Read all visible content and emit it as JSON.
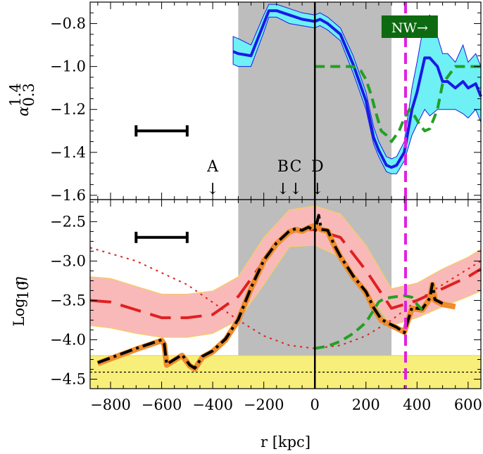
{
  "chart_data": [
    {
      "panel": "top",
      "type": "line",
      "xlabel": "",
      "ylabel": "α",
      "ylabel_sup": "1.4",
      "ylabel_sub": "0.3",
      "xlim": [
        -880,
        650
      ],
      "ylim": [
        -1.62,
        -0.7
      ],
      "yticks": [
        -0.8,
        -1.0,
        -1.2,
        -1.4,
        -1.6
      ],
      "ytick_labels": [
        "−0.8",
        "−1.0",
        "−1.2",
        "−1.4",
        "−1.6"
      ],
      "shaded_region_x": [
        -300,
        300
      ],
      "vline_solid_x": 0,
      "vline_dashed_x": 355,
      "scale_bar": {
        "x": [
          -700,
          -500
        ],
        "y": -1.3
      },
      "annotation": "NW→",
      "markers": [
        {
          "label": "A",
          "x": -400
        },
        {
          "label": "B",
          "x": -125
        },
        {
          "label": "C",
          "x": -75
        },
        {
          "label": "D",
          "x": 10
        }
      ],
      "series": [
        {
          "color": "#1a1ae6",
          "style": "solid",
          "band_color": "#6ef0f5",
          "x": [
            -320,
            -300,
            -250,
            -200,
            -180,
            -150,
            -100,
            -50,
            0,
            20,
            50,
            100,
            150,
            200,
            230,
            250,
            280,
            300,
            320,
            350,
            380,
            400,
            430,
            450,
            480,
            500,
            520,
            550,
            580,
            600,
            630,
            650
          ],
          "y": [
            -0.93,
            -0.94,
            -0.95,
            -0.8,
            -0.74,
            -0.74,
            -0.76,
            -0.78,
            -0.79,
            -0.78,
            -0.8,
            -0.85,
            -0.99,
            -1.16,
            -1.33,
            -1.39,
            -1.46,
            -1.47,
            -1.46,
            -1.4,
            -1.2,
            -1.12,
            -0.96,
            -0.96,
            -1.0,
            -1.07,
            -1.07,
            -1.1,
            -1.07,
            -1.1,
            -1.08,
            -1.14
          ],
          "y_lower": [
            -0.99,
            -1.0,
            -1.0,
            -0.84,
            -0.77,
            -0.77,
            -0.8,
            -0.81,
            -0.82,
            -0.81,
            -0.83,
            -0.88,
            -1.03,
            -1.2,
            -1.36,
            -1.42,
            -1.49,
            -1.5,
            -1.5,
            -1.44,
            -1.32,
            -1.27,
            -1.2,
            -1.23,
            -1.2,
            -1.2,
            -1.2,
            -1.2,
            -1.22,
            -1.24,
            -1.2,
            -1.26
          ],
          "y_upper": [
            -0.86,
            -0.87,
            -0.9,
            -0.76,
            -0.71,
            -0.71,
            -0.73,
            -0.75,
            -0.76,
            -0.75,
            -0.77,
            -0.82,
            -0.95,
            -1.12,
            -1.28,
            -1.35,
            -1.42,
            -1.43,
            -1.42,
            -1.35,
            -1.1,
            -0.98,
            -0.78,
            -0.76,
            -0.86,
            -0.94,
            -0.94,
            -0.98,
            -0.9,
            -0.98,
            -0.94,
            -1.0
          ]
        },
        {
          "color": "#22a022",
          "style": "dashed",
          "x": [
            0,
            100,
            150,
            180,
            200,
            220,
            240,
            260,
            280,
            300,
            330,
            350,
            370,
            390,
            410,
            430,
            450,
            480,
            500,
            550,
            600,
            650
          ],
          "y": [
            -1.0,
            -1.0,
            -1.0,
            -1.02,
            -1.06,
            -1.13,
            -1.22,
            -1.3,
            -1.32,
            -1.35,
            -1.3,
            -1.24,
            -1.2,
            -1.23,
            -1.27,
            -1.3,
            -1.29,
            -1.2,
            -1.08,
            -1.0,
            -1.0,
            -1.0
          ]
        }
      ]
    },
    {
      "panel": "bottom",
      "type": "line",
      "xlabel": "r [kpc]",
      "ylabel": "Log",
      "ylabel_sub": "10",
      "ylabel_var": "η",
      "xlim": [
        -880,
        650
      ],
      "ylim": [
        -4.62,
        -2.22
      ],
      "xticks": [
        -800,
        -600,
        -400,
        -200,
        0,
        200,
        400,
        600
      ],
      "xtick_labels": [
        "−800",
        "−600",
        "−400",
        "−200",
        "0",
        "200",
        "400",
        "600"
      ],
      "yticks": [
        -2.5,
        -3.0,
        -3.5,
        -4.0,
        -4.5
      ],
      "ytick_labels": [
        "−2.5",
        "−3.0",
        "−3.5",
        "−4.0",
        "−4.5"
      ],
      "yellow_band_y": [
        -4.62,
        -4.2
      ],
      "hline_dotted_y": -4.41,
      "shaded_region_x": [
        -300,
        300
      ],
      "vline_solid_x": 0,
      "vline_dashed_x": 355,
      "scale_bar": {
        "x": [
          -700,
          -500
        ],
        "y": -2.7
      },
      "series": [
        {
          "color": "#e02020",
          "style": "longdash",
          "band_color": "#f9b9b9",
          "x": [
            -880,
            -800,
            -700,
            -600,
            -500,
            -400,
            -300,
            -200,
            -100,
            0,
            100,
            200,
            300,
            400,
            500,
            600,
            650
          ],
          "y": [
            -3.5,
            -3.52,
            -3.62,
            -3.72,
            -3.72,
            -3.68,
            -3.45,
            -3.0,
            -2.6,
            -2.6,
            -2.7,
            -3.12,
            -3.6,
            -3.5,
            -3.35,
            -3.2,
            -3.1
          ],
          "y_lower": [
            -3.82,
            -3.85,
            -3.92,
            -3.97,
            -3.97,
            -3.92,
            -3.75,
            -3.3,
            -2.82,
            -2.8,
            -2.95,
            -3.38,
            -3.82,
            -3.72,
            -3.58,
            -3.45,
            -3.38
          ],
          "y_upper": [
            -3.2,
            -3.22,
            -3.32,
            -3.42,
            -3.42,
            -3.38,
            -3.2,
            -2.7,
            -2.35,
            -2.3,
            -2.4,
            -2.8,
            -3.35,
            -3.28,
            -3.1,
            -2.95,
            -2.85
          ]
        },
        {
          "color": "#e02020",
          "style": "dotted",
          "x": [
            -880,
            -700,
            -500,
            -300,
            -200,
            -100,
            0,
            100,
            200,
            300,
            400,
            500,
            600,
            650
          ],
          "y": [
            -2.83,
            -3.0,
            -3.3,
            -3.75,
            -3.95,
            -4.07,
            -4.11,
            -4.07,
            -3.95,
            -3.75,
            -3.5,
            -3.3,
            -3.1,
            -3.0
          ]
        },
        {
          "color": "#f08c2a",
          "style": "solid-thick",
          "x": [
            -850,
            -700,
            -600,
            -590,
            -580,
            -520,
            -490,
            -470,
            -440,
            -400,
            -350,
            -300,
            -250,
            -200,
            -150,
            -100,
            -75,
            -50,
            -25,
            0,
            25,
            50,
            75,
            100,
            150,
            200,
            230,
            260,
            300,
            320,
            350,
            380,
            420,
            450,
            460,
            470,
            500,
            550
          ],
          "y": [
            -4.3,
            -4.12,
            -4.01,
            -4.06,
            -4.32,
            -4.2,
            -4.33,
            -4.37,
            -4.22,
            -4.15,
            -4.0,
            -3.75,
            -3.35,
            -3.0,
            -2.78,
            -2.63,
            -2.6,
            -2.62,
            -2.58,
            -2.55,
            -2.6,
            -2.62,
            -2.8,
            -2.95,
            -3.2,
            -3.4,
            -3.6,
            -3.75,
            -3.82,
            -3.85,
            -3.9,
            -3.6,
            -3.62,
            -3.48,
            -3.3,
            -3.5,
            -3.55,
            -3.58
          ]
        },
        {
          "color": "#000000",
          "style": "dashdot",
          "x": [
            -850,
            -700,
            -600,
            -590,
            -580,
            -520,
            -490,
            -470,
            -440,
            -400,
            -350,
            -300,
            -250,
            -200,
            -150,
            -100,
            -75,
            -50,
            -25,
            0,
            15,
            25,
            50,
            75,
            100,
            150,
            200,
            230,
            260,
            300,
            320,
            350,
            380,
            420,
            450,
            460,
            470,
            500
          ],
          "y": [
            -4.29,
            -4.11,
            -4.0,
            -4.05,
            -4.31,
            -4.19,
            -4.32,
            -4.36,
            -4.21,
            -4.14,
            -3.99,
            -3.74,
            -3.34,
            -2.99,
            -2.77,
            -2.62,
            -2.59,
            -2.61,
            -2.57,
            -2.62,
            -2.42,
            -2.6,
            -2.61,
            -2.79,
            -2.94,
            -3.19,
            -3.39,
            -3.59,
            -3.74,
            -3.81,
            -3.84,
            -3.91,
            -3.59,
            -3.61,
            -3.47,
            -3.29,
            -3.49,
            -3.54
          ]
        },
        {
          "color": "#22a022",
          "style": "dashed",
          "x": [
            0,
            50,
            100,
            150,
            200,
            250,
            270,
            300,
            350,
            380,
            400,
            420
          ],
          "y": [
            -4.11,
            -4.08,
            -4.02,
            -3.92,
            -3.78,
            -3.52,
            -3.48,
            -3.46,
            -3.44,
            -3.46,
            -3.55,
            -3.62
          ]
        }
      ]
    }
  ]
}
